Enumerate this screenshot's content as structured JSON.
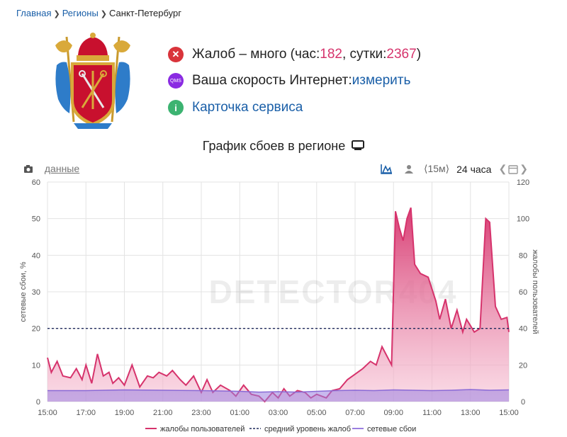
{
  "breadcrumb": {
    "home": "Главная",
    "regions": "Регионы",
    "current": "Санкт-Петербург"
  },
  "status": {
    "complaints_prefix": "Жалоб – много (час: ",
    "hour_count": "182",
    "mid": ", сутки: ",
    "day_count": "2367",
    "suffix": ")",
    "speed_label": "Ваша скорость Интернет: ",
    "speed_link": "измерить",
    "card_link": "Карточка сервиса",
    "qms_badge": "QMS",
    "info_badge": "i",
    "x_badge": "✕"
  },
  "graph": {
    "title": "График сбоев в регионе",
    "title_icon": "monitor-icon"
  },
  "toolbar": {
    "data_link": "данные",
    "period_15m": "⟨15м⟩",
    "period_24h": "24 часа"
  },
  "watermark": "DETECTOR404",
  "colors": {
    "complaints": "#d6336c",
    "outages": "#9b7fe0",
    "average": "#1f2a5c",
    "link": "#1a5fa8"
  },
  "chart_data": {
    "type": "area",
    "x_ticks": [
      "15:00",
      "17:00",
      "19:00",
      "21:00",
      "23:00",
      "01:00",
      "03:00",
      "05:00",
      "07:00",
      "09:00",
      "11:00",
      "13:00",
      "15:00"
    ],
    "y_left": {
      "label": "сетевые сбои, %",
      "ticks": [
        0,
        10,
        20,
        30,
        40,
        50,
        60
      ],
      "range": [
        0,
        60
      ]
    },
    "y_right": {
      "label": "жалобы пользователей",
      "ticks": [
        0,
        20,
        40,
        60,
        80,
        100,
        120
      ],
      "range": [
        0,
        120
      ]
    },
    "x_hours_range": [
      15,
      39
    ],
    "series": [
      {
        "name": "жалобы пользователей",
        "axis": "right",
        "points": [
          [
            15,
            24
          ],
          [
            15.2,
            16
          ],
          [
            15.5,
            22
          ],
          [
            15.8,
            14
          ],
          [
            16.2,
            13
          ],
          [
            16.5,
            18
          ],
          [
            16.8,
            12
          ],
          [
            17,
            20
          ],
          [
            17.3,
            10
          ],
          [
            17.6,
            26
          ],
          [
            17.9,
            14
          ],
          [
            18.2,
            16
          ],
          [
            18.4,
            10
          ],
          [
            18.7,
            13
          ],
          [
            19,
            9
          ],
          [
            19.4,
            20
          ],
          [
            19.8,
            8
          ],
          [
            20.2,
            14
          ],
          [
            20.5,
            13
          ],
          [
            20.8,
            16
          ],
          [
            21.2,
            14
          ],
          [
            21.5,
            17
          ],
          [
            21.9,
            12
          ],
          [
            22.2,
            9
          ],
          [
            22.6,
            14
          ],
          [
            23,
            5
          ],
          [
            23.3,
            12
          ],
          [
            23.6,
            5
          ],
          [
            24,
            9
          ],
          [
            24.5,
            6
          ],
          [
            24.8,
            3
          ],
          [
            25.2,
            9
          ],
          [
            25.6,
            4
          ],
          [
            26,
            3
          ],
          [
            26.3,
            0
          ],
          [
            26.7,
            5
          ],
          [
            27,
            2
          ],
          [
            27.3,
            7
          ],
          [
            27.6,
            3
          ],
          [
            28,
            6
          ],
          [
            28.4,
            5
          ],
          [
            28.7,
            2
          ],
          [
            29,
            4
          ],
          [
            29.5,
            2
          ],
          [
            29.8,
            6
          ],
          [
            30.2,
            7
          ],
          [
            30.6,
            12
          ],
          [
            31,
            15
          ],
          [
            31.4,
            18
          ],
          [
            31.8,
            22
          ],
          [
            32.1,
            20
          ],
          [
            32.4,
            30
          ],
          [
            32.7,
            24
          ],
          [
            32.9,
            20
          ],
          [
            33.1,
            104
          ],
          [
            33.3,
            95
          ],
          [
            33.5,
            88
          ],
          [
            33.7,
            100
          ],
          [
            33.9,
            106
          ],
          [
            34.1,
            75
          ],
          [
            34.4,
            70
          ],
          [
            34.8,
            68
          ],
          [
            35.2,
            55
          ],
          [
            35.4,
            45
          ],
          [
            35.7,
            56
          ],
          [
            36,
            40
          ],
          [
            36.3,
            50
          ],
          [
            36.6,
            38
          ],
          [
            36.8,
            45
          ],
          [
            37.2,
            38
          ],
          [
            37.5,
            40
          ],
          [
            37.8,
            100
          ],
          [
            38,
            98
          ],
          [
            38.3,
            52
          ],
          [
            38.6,
            45
          ],
          [
            38.9,
            46
          ],
          [
            39,
            38
          ]
        ]
      },
      {
        "name": "средний уровень жалоб",
        "axis": "right",
        "value": 40
      },
      {
        "name": "сетевые сбои",
        "axis": "left",
        "points": [
          [
            15,
            3
          ],
          [
            17,
            3
          ],
          [
            19,
            3.2
          ],
          [
            21,
            3.1
          ],
          [
            23,
            3
          ],
          [
            24,
            2.9
          ],
          [
            25,
            2.8
          ],
          [
            26,
            2.6
          ],
          [
            27,
            2.7
          ],
          [
            28,
            2.6
          ],
          [
            29,
            2.8
          ],
          [
            30,
            3
          ],
          [
            31,
            3.1
          ],
          [
            32,
            3
          ],
          [
            33,
            3.2
          ],
          [
            34,
            3.1
          ],
          [
            35,
            3
          ],
          [
            36,
            3.1
          ],
          [
            37,
            3.3
          ],
          [
            38,
            3.1
          ],
          [
            39,
            3.2
          ]
        ]
      }
    ]
  }
}
